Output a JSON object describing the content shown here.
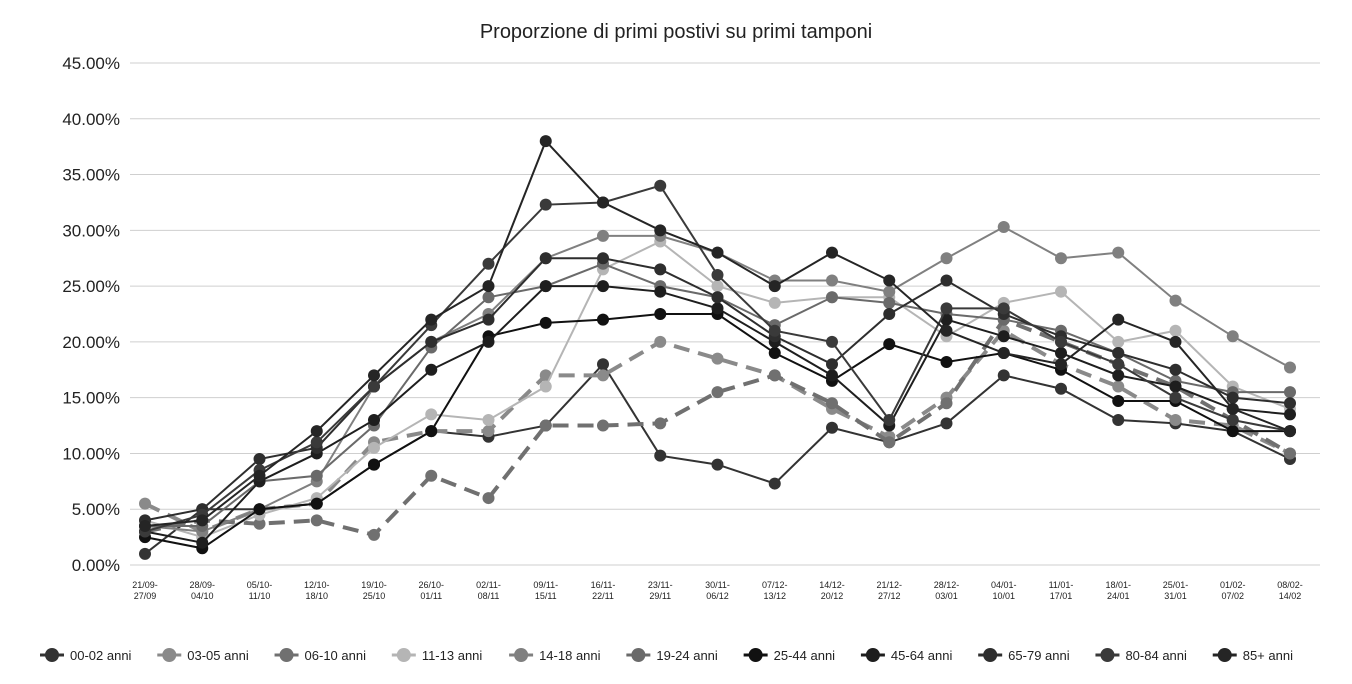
{
  "chart_data": {
    "type": "line",
    "title": "Proporzione di primi postivi su primi tamponi",
    "categories": [
      "21/09-27/09",
      "28/09-04/10",
      "05/10-11/10",
      "12/10-18/10",
      "19/10-25/10",
      "26/10-01/11",
      "02/11-08/11",
      "09/11-15/11",
      "16/11-22/11",
      "23/11-29/11",
      "30/11-06/12",
      "07/12-13/12",
      "14/12-20/12",
      "21/12-27/12",
      "28/12-03/01",
      "04/01-10/01",
      "11/01-17/01",
      "18/01-24/01",
      "25/01-31/01",
      "01/02-07/02",
      "08/02-14/02"
    ],
    "ylim": [
      0,
      45
    ],
    "yticks": [
      {
        "value": 0,
        "label": "0.00%"
      },
      {
        "value": 5,
        "label": "5.00%"
      },
      {
        "value": 10,
        "label": "10.00%"
      },
      {
        "value": 15,
        "label": "15.00%"
      },
      {
        "value": 20,
        "label": "20.00%"
      },
      {
        "value": 25,
        "label": "25.00%"
      },
      {
        "value": 30,
        "label": "30.00%"
      },
      {
        "value": 35,
        "label": "35.00%"
      },
      {
        "value": 40,
        "label": "40.00%"
      },
      {
        "value": 45,
        "label": "45.00%"
      }
    ],
    "grid": true,
    "series": [
      {
        "name": "00-02 anni",
        "color": "#333333",
        "dashed": false,
        "values": [
          1,
          5,
          5,
          5.5,
          9,
          12,
          11.5,
          12.5,
          18,
          9.8,
          9,
          7.3,
          12.3,
          11,
          12.7,
          17,
          15.8,
          13,
          12.7,
          12,
          9.5
        ]
      },
      {
        "name": "03-05 anni",
        "color": "#8a8a8a",
        "dashed": true,
        "values": [
          5.5,
          3,
          5,
          5.5,
          11,
          12,
          12,
          17,
          17,
          20,
          18.5,
          17,
          14,
          11.5,
          15,
          21,
          18,
          16,
          13,
          12.5,
          10
        ]
      },
      {
        "name": "06-10 anni",
        "color": "#707070",
        "dashed": true,
        "values": [
          3,
          4,
          3.7,
          4,
          2.7,
          8,
          6,
          12.5,
          12.5,
          12.7,
          15.5,
          17,
          14.5,
          11,
          14.5,
          22,
          20,
          18,
          16,
          13,
          10
        ]
      },
      {
        "name": "11-13 anni",
        "color": "#b5b5b5",
        "dashed": false,
        "values": [
          4,
          2.5,
          4.5,
          6,
          10.5,
          13.5,
          13,
          16,
          26.5,
          29,
          25,
          23.5,
          24,
          24,
          20.5,
          23.5,
          24.5,
          20,
          21,
          16,
          14
        ]
      },
      {
        "name": "14-18 anni",
        "color": "#808080",
        "dashed": false,
        "values": [
          3.5,
          3,
          5,
          7.5,
          16,
          20,
          22.5,
          27.5,
          29.5,
          29.5,
          28,
          25.5,
          25.5,
          24.5,
          27.5,
          30.3,
          27.5,
          28,
          23.7,
          20.5,
          17.7
        ]
      },
      {
        "name": "19-24 anni",
        "color": "#6a6a6a",
        "dashed": false,
        "values": [
          3.5,
          3.5,
          7.5,
          8,
          12.5,
          19.5,
          24,
          25,
          27,
          25,
          24,
          21.5,
          24,
          23.5,
          22.5,
          22,
          21,
          19,
          16.5,
          15.5,
          15.5
        ]
      },
      {
        "name": "25-44 anni",
        "color": "#111111",
        "dashed": false,
        "values": [
          2.5,
          1.5,
          5,
          5.5,
          9,
          12,
          20.5,
          21.7,
          22,
          22.5,
          22.5,
          19,
          16.5,
          19.8,
          18.2,
          19,
          17.5,
          14.7,
          14.7,
          12,
          12
        ]
      },
      {
        "name": "45-64 anni",
        "color": "#1e1e1e",
        "dashed": false,
        "values": [
          3,
          2,
          7.5,
          10,
          13,
          17.5,
          20,
          25,
          25,
          24.5,
          23,
          20,
          17,
          12.5,
          22,
          20.5,
          19,
          17,
          16,
          14,
          13.5
        ]
      },
      {
        "name": "65-79 anni",
        "color": "#2e2e2e",
        "dashed": false,
        "values": [
          4,
          5,
          9.5,
          10.5,
          16,
          20,
          22,
          27.5,
          27.5,
          26.5,
          24,
          20.5,
          18,
          22.5,
          25.5,
          22.5,
          20.5,
          19,
          17.5,
          15,
          14.5
        ]
      },
      {
        "name": "80-84 anni",
        "color": "#3a3a3a",
        "dashed": false,
        "values": [
          3,
          4.5,
          8.5,
          11,
          16,
          21.5,
          27,
          32.3,
          32.5,
          34,
          26,
          21,
          20,
          13,
          23,
          23,
          20,
          18,
          15,
          13,
          12
        ]
      },
      {
        "name": "85+ anni",
        "color": "#252525",
        "dashed": false,
        "values": [
          3.5,
          4,
          8,
          12,
          17,
          22,
          25,
          38,
          32.5,
          30,
          28,
          25,
          28,
          25.5,
          21,
          19,
          18,
          22,
          20,
          14,
          12
        ]
      }
    ]
  }
}
